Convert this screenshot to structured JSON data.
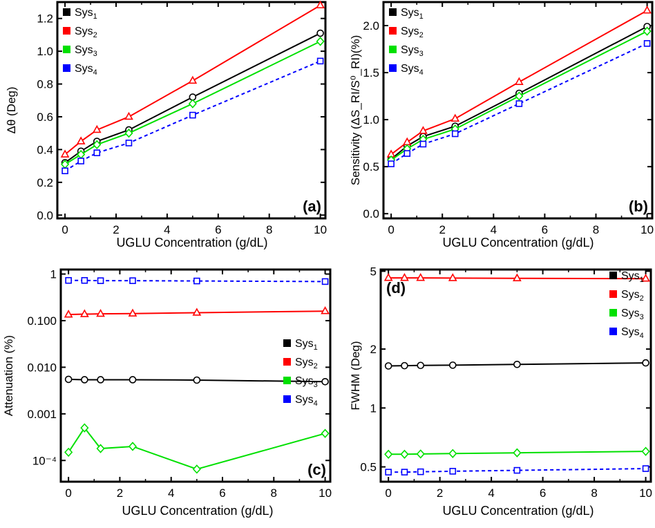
{
  "chart_data": [
    {
      "type": "line",
      "panel_label": "(a)",
      "xlabel": "UGLU Concentration (g/dL)",
      "ylabel": "Δθ (Deg)",
      "xlim": [
        -0.3,
        10.2
      ],
      "ylim": [
        -0.02,
        1.3
      ],
      "yscale": "linear",
      "xticks": [
        0,
        2,
        4,
        6,
        8,
        10
      ],
      "xtick_labels": [
        "0",
        "2",
        "4",
        "6",
        "8",
        "10"
      ],
      "yticks": [
        0.0,
        0.2,
        0.4,
        0.6,
        0.8,
        1.0,
        1.2
      ],
      "ytick_labels": [
        "0.0",
        "0.2",
        "0.4",
        "0.6",
        "0.8",
        "1.0",
        "1.2"
      ],
      "legend_position": "top-left",
      "label_position": "bottom-right",
      "x": [
        0,
        0.625,
        1.25,
        2.5,
        5,
        10
      ],
      "series": [
        {
          "name": "Sys",
          "sub": "1",
          "color": "#000000",
          "marker": "circle",
          "dashed": false,
          "values": [
            0.32,
            0.39,
            0.45,
            0.52,
            0.72,
            1.11
          ]
        },
        {
          "name": "Sys",
          "sub": "2",
          "color": "#ff0000",
          "marker": "triangle",
          "dashed": false,
          "values": [
            0.37,
            0.45,
            0.52,
            0.6,
            0.82,
            1.28
          ]
        },
        {
          "name": "Sys",
          "sub": "3",
          "color": "#00e000",
          "marker": "diamond",
          "dashed": false,
          "values": [
            0.31,
            0.37,
            0.43,
            0.5,
            0.68,
            1.06
          ]
        },
        {
          "name": "Sys",
          "sub": "4",
          "color": "#0000ff",
          "marker": "square",
          "dashed": true,
          "values": [
            0.27,
            0.33,
            0.38,
            0.44,
            0.61,
            0.94
          ]
        }
      ]
    },
    {
      "type": "line",
      "panel_label": "(b)",
      "xlabel": "UGLU Concentration (g/dL)",
      "ylabel": "Sensitivity (ΔS_RI/S⁰_RI)(%)",
      "xlim": [
        -0.3,
        10.2
      ],
      "ylim": [
        -0.05,
        2.25
      ],
      "yscale": "linear",
      "xticks": [
        0,
        2,
        4,
        6,
        8,
        10
      ],
      "xtick_labels": [
        "0",
        "2",
        "4",
        "6",
        "8",
        "10"
      ],
      "yticks": [
        0.0,
        0.5,
        1.0,
        1.5,
        2.0
      ],
      "ytick_labels": [
        "0.0",
        "0.5",
        "1.0",
        "1.5",
        "2.0"
      ],
      "legend_position": "top-left",
      "label_position": "bottom-right",
      "x": [
        0,
        0.625,
        1.25,
        2.5,
        5,
        10
      ],
      "series": [
        {
          "name": "Sys",
          "sub": "1",
          "color": "#000000",
          "marker": "circle",
          "dashed": false,
          "values": [
            0.58,
            0.72,
            0.82,
            0.93,
            1.28,
            1.99
          ]
        },
        {
          "name": "Sys",
          "sub": "2",
          "color": "#ff0000",
          "marker": "triangle",
          "dashed": false,
          "values": [
            0.63,
            0.76,
            0.88,
            1.01,
            1.4,
            2.16
          ]
        },
        {
          "name": "Sys",
          "sub": "3",
          "color": "#00e000",
          "marker": "diamond",
          "dashed": false,
          "values": [
            0.57,
            0.69,
            0.79,
            0.9,
            1.25,
            1.94
          ]
        },
        {
          "name": "Sys",
          "sub": "4",
          "color": "#0000ff",
          "marker": "square",
          "dashed": true,
          "values": [
            0.53,
            0.64,
            0.74,
            0.85,
            1.17,
            1.81
          ]
        }
      ]
    },
    {
      "type": "line",
      "panel_label": "(c)",
      "xlabel": "UGLU Concentration (g/dL)",
      "ylabel": "Attenuation (%)",
      "xlim": [
        -0.3,
        10.2
      ],
      "ylim": [
        3.5e-05,
        1.25
      ],
      "yscale": "log",
      "xticks": [
        0,
        2,
        4,
        6,
        8,
        10
      ],
      "xtick_labels": [
        "0",
        "2",
        "4",
        "6",
        "8",
        "10"
      ],
      "yticks": [
        0.0001,
        0.001,
        0.01,
        0.1,
        1
      ],
      "ytick_labels": [
        "10⁻⁴",
        "0.001",
        "0.010",
        "0.100",
        "1"
      ],
      "legend_position": "right",
      "label_position": "bottom-right",
      "x": [
        0,
        0.625,
        1.25,
        2.5,
        5,
        10
      ],
      "series": [
        {
          "name": "Sys",
          "sub": "1",
          "color": "#000000",
          "marker": "circle",
          "dashed": false,
          "values": [
            0.0055,
            0.0054,
            0.0054,
            0.0054,
            0.0053,
            0.0049
          ]
        },
        {
          "name": "Sys",
          "sub": "2",
          "color": "#ff0000",
          "marker": "triangle",
          "dashed": false,
          "values": [
            0.135,
            0.138,
            0.14,
            0.142,
            0.148,
            0.16
          ]
        },
        {
          "name": "Sys",
          "sub": "3",
          "color": "#00e000",
          "marker": "diamond",
          "dashed": false,
          "values": [
            0.00015,
            0.0005,
            0.00018,
            0.0002,
            6.5e-05,
            0.00038
          ]
        },
        {
          "name": "Sys",
          "sub": "4",
          "color": "#0000ff",
          "marker": "square",
          "dashed": true,
          "values": [
            0.73,
            0.73,
            0.72,
            0.72,
            0.71,
            0.69
          ]
        }
      ]
    },
    {
      "type": "line",
      "panel_label": "(d)",
      "xlabel": "UGLU Concentration (g/dL)",
      "ylabel": "FWHM (Deg)",
      "xlim": [
        -0.3,
        10.2
      ],
      "ylim": [
        0.42,
        5.1
      ],
      "yscale": "log",
      "xticks": [
        0,
        2,
        4,
        6,
        8,
        10
      ],
      "xtick_labels": [
        "0",
        "2",
        "4",
        "6",
        "8",
        "10"
      ],
      "yticks": [
        0.5,
        1,
        2,
        5
      ],
      "ytick_labels": [
        "0.5",
        "1",
        "2",
        "5"
      ],
      "legend_position": "top-right",
      "label_position": "top-left",
      "x": [
        0,
        0.625,
        1.25,
        2.5,
        5,
        10
      ],
      "series": [
        {
          "name": "Sys",
          "sub": "1",
          "color": "#000000",
          "marker": "circle",
          "dashed": false,
          "values": [
            1.64,
            1.645,
            1.65,
            1.655,
            1.67,
            1.7
          ]
        },
        {
          "name": "Sys",
          "sub": "2",
          "color": "#ff0000",
          "marker": "triangle",
          "dashed": false,
          "values": [
            4.62,
            4.62,
            4.62,
            4.61,
            4.6,
            4.58
          ]
        },
        {
          "name": "Sys",
          "sub": "3",
          "color": "#00e000",
          "marker": "diamond",
          "dashed": false,
          "values": [
            0.58,
            0.58,
            0.582,
            0.585,
            0.59,
            0.6
          ]
        },
        {
          "name": "Sys",
          "sub": "4",
          "color": "#0000ff",
          "marker": "square",
          "dashed": true,
          "values": [
            0.47,
            0.47,
            0.472,
            0.475,
            0.48,
            0.49
          ]
        }
      ]
    }
  ]
}
